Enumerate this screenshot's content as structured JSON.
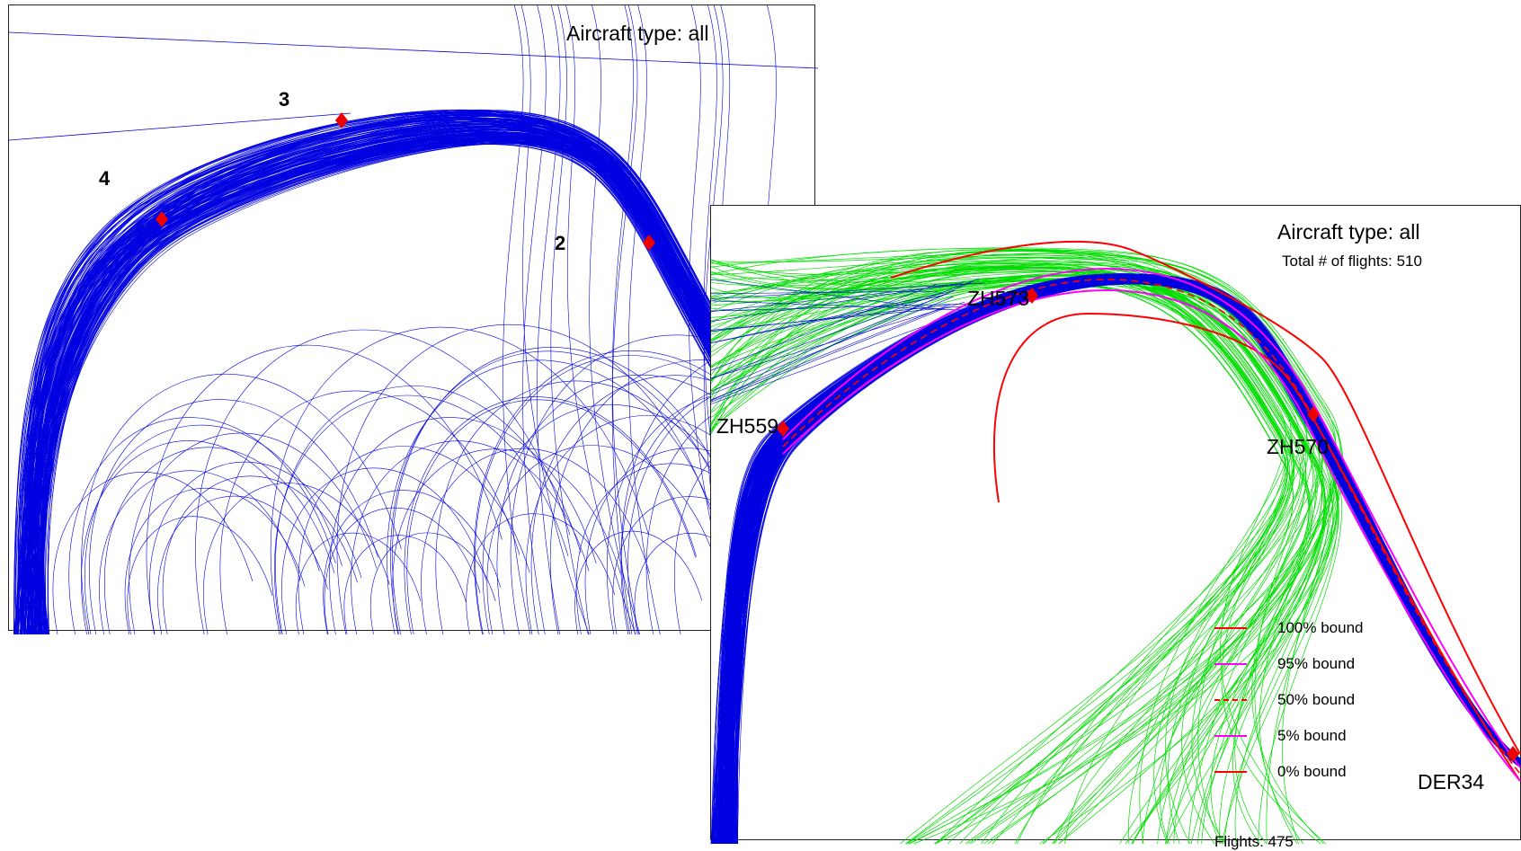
{
  "left_panel": {
    "title": "Aircraft type: all",
    "waypoint_labels": [
      {
        "id": "4",
        "text": "4"
      },
      {
        "id": "3",
        "text": "3"
      },
      {
        "id": "2",
        "text": "2"
      }
    ]
  },
  "right_panel": {
    "title": "Aircraft type: all",
    "subtitle": "Total # of flights: 510",
    "waypoints": [
      {
        "id": "ZH559",
        "text": "ZH559"
      },
      {
        "id": "ZH573",
        "text": "ZH573"
      },
      {
        "id": "ZH570",
        "text": "ZH570"
      },
      {
        "id": "DER34",
        "text": "DER34"
      }
    ],
    "legend": [
      {
        "label": "100% bound",
        "color": "#ff0000",
        "style": "solid"
      },
      {
        "label": "95% bound",
        "color": "#ff00ff",
        "style": "solid"
      },
      {
        "label": "50% bound",
        "color": "#ff0000",
        "style": "dashed"
      },
      {
        "label": "5% bound",
        "color": "#ff00ff",
        "style": "solid"
      },
      {
        "label": "0% bound",
        "color": "#ff0000",
        "style": "solid"
      }
    ],
    "flights_note": "Flights: 475"
  },
  "colors": {
    "tracks": "#0000e0",
    "non_conforming_tracks": "#00dd00",
    "waypoint_marker": "#ee0000"
  }
}
